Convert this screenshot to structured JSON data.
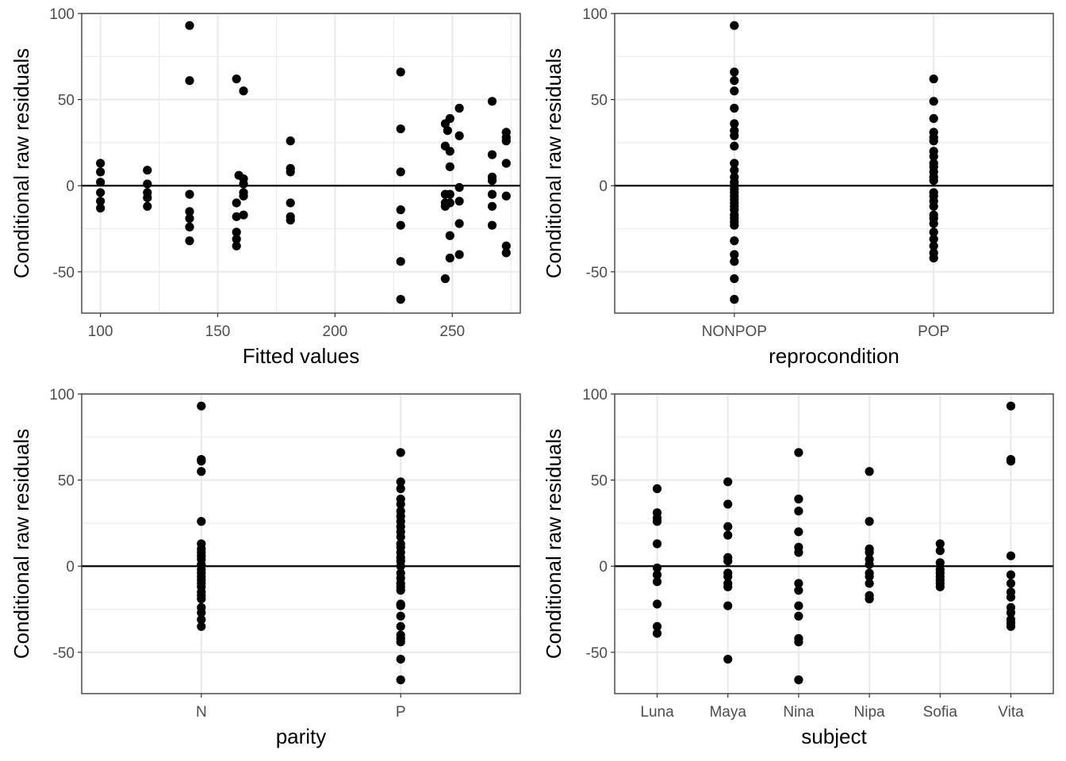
{
  "chart_data": [
    {
      "type": "scatter",
      "xscale": "continuous",
      "xlabel": "Fitted values",
      "ylabel": "Conditional raw residuals",
      "xlim": [
        92,
        279
      ],
      "ylim": [
        -74,
        100
      ],
      "xticks": [
        100,
        150,
        200,
        250
      ],
      "yticks": [
        100,
        50,
        0,
        -50
      ],
      "hline": 0,
      "grid": true,
      "points": [
        [
          100,
          13
        ],
        [
          100,
          8
        ],
        [
          100,
          2
        ],
        [
          100,
          -4
        ],
        [
          100,
          -9
        ],
        [
          100,
          -13
        ],
        [
          120,
          9
        ],
        [
          120,
          1
        ],
        [
          120,
          -4
        ],
        [
          120,
          -7
        ],
        [
          120,
          -12
        ],
        [
          138,
          93
        ],
        [
          138,
          61
        ],
        [
          138,
          -5
        ],
        [
          138,
          -15
        ],
        [
          138,
          -19
        ],
        [
          138,
          -24
        ],
        [
          138,
          -32
        ],
        [
          158,
          62
        ],
        [
          159,
          6
        ],
        [
          158,
          -10
        ],
        [
          158,
          -18
        ],
        [
          158,
          -27
        ],
        [
          158,
          -31
        ],
        [
          158,
          -35
        ],
        [
          161,
          55
        ],
        [
          161,
          4
        ],
        [
          161,
          1
        ],
        [
          161,
          -4
        ],
        [
          161,
          -6
        ],
        [
          161,
          -17
        ],
        [
          181,
          26
        ],
        [
          181,
          10
        ],
        [
          181,
          8
        ],
        [
          181,
          -10
        ],
        [
          181,
          -18
        ],
        [
          181,
          -20
        ],
        [
          228,
          66
        ],
        [
          228,
          33
        ],
        [
          228,
          8
        ],
        [
          228,
          -14
        ],
        [
          228,
          -23
        ],
        [
          228,
          -44
        ],
        [
          228,
          -66
        ],
        [
          247,
          36
        ],
        [
          247,
          23
        ],
        [
          247,
          -5
        ],
        [
          247,
          -10
        ],
        [
          247,
          -12
        ],
        [
          247,
          -54
        ],
        [
          248,
          32
        ],
        [
          249,
          39
        ],
        [
          249,
          20
        ],
        [
          249,
          11
        ],
        [
          249,
          -5
        ],
        [
          249,
          -10
        ],
        [
          249,
          -29
        ],
        [
          249,
          -42
        ],
        [
          253,
          45
        ],
        [
          253,
          29
        ],
        [
          253,
          -1
        ],
        [
          253,
          -9
        ],
        [
          253,
          -22
        ],
        [
          253,
          -40
        ],
        [
          267,
          49
        ],
        [
          267,
          18
        ],
        [
          267,
          5
        ],
        [
          267,
          3
        ],
        [
          267,
          -5
        ],
        [
          267,
          -12
        ],
        [
          267,
          -23
        ],
        [
          273,
          31
        ],
        [
          273,
          28
        ],
        [
          273,
          26
        ],
        [
          273,
          13
        ],
        [
          273,
          -6
        ],
        [
          273,
          -35
        ],
        [
          273,
          -39
        ]
      ]
    },
    {
      "type": "scatter",
      "xscale": "categorical",
      "xlabel": "reprocondition",
      "ylabel": "Conditional raw residuals",
      "ylim": [
        -74,
        100
      ],
      "yticks": [
        100,
        50,
        0,
        -50
      ],
      "hline": 0,
      "grid": true,
      "categories": [
        "NONPOP",
        "POP"
      ],
      "points": [
        [
          "NONPOP",
          93
        ],
        [
          "NONPOP",
          66
        ],
        [
          "NONPOP",
          61
        ],
        [
          "NONPOP",
          55
        ],
        [
          "NONPOP",
          45
        ],
        [
          "NONPOP",
          36
        ],
        [
          "NONPOP",
          32
        ],
        [
          "NONPOP",
          29
        ],
        [
          "NONPOP",
          23
        ],
        [
          "NONPOP",
          13
        ],
        [
          "NONPOP",
          9
        ],
        [
          "NONPOP",
          5
        ],
        [
          "NONPOP",
          2
        ],
        [
          "NONPOP",
          0
        ],
        [
          "NONPOP",
          -2
        ],
        [
          "NONPOP",
          -4
        ],
        [
          "NONPOP",
          -6
        ],
        [
          "NONPOP",
          -8
        ],
        [
          "NONPOP",
          -10
        ],
        [
          "NONPOP",
          -12
        ],
        [
          "NONPOP",
          -14
        ],
        [
          "NONPOP",
          -17
        ],
        [
          "NONPOP",
          -19
        ],
        [
          "NONPOP",
          -21
        ],
        [
          "NONPOP",
          -23
        ],
        [
          "NONPOP",
          -32
        ],
        [
          "NONPOP",
          -40
        ],
        [
          "NONPOP",
          -44
        ],
        [
          "NONPOP",
          -54
        ],
        [
          "NONPOP",
          -66
        ],
        [
          "POP",
          62
        ],
        [
          "POP",
          49
        ],
        [
          "POP",
          39
        ],
        [
          "POP",
          31
        ],
        [
          "POP",
          28
        ],
        [
          "POP",
          26
        ],
        [
          "POP",
          20
        ],
        [
          "POP",
          17
        ],
        [
          "POP",
          13
        ],
        [
          "POP",
          11
        ],
        [
          "POP",
          8
        ],
        [
          "POP",
          5
        ],
        [
          "POP",
          3
        ],
        [
          "POP",
          -4
        ],
        [
          "POP",
          -6
        ],
        [
          "POP",
          -9
        ],
        [
          "POP",
          -12
        ],
        [
          "POP",
          -17
        ],
        [
          "POP",
          -19
        ],
        [
          "POP",
          -22
        ],
        [
          "POP",
          -27
        ],
        [
          "POP",
          -31
        ],
        [
          "POP",
          -35
        ],
        [
          "POP",
          -39
        ],
        [
          "POP",
          -42
        ]
      ]
    },
    {
      "type": "scatter",
      "xscale": "categorical",
      "xlabel": "parity",
      "ylabel": "Conditional raw residuals",
      "ylim": [
        -74,
        100
      ],
      "yticks": [
        100,
        50,
        0,
        -50
      ],
      "hline": 0,
      "grid": true,
      "categories": [
        "N",
        "P"
      ],
      "points": [
        [
          "N",
          93
        ],
        [
          "N",
          62
        ],
        [
          "N",
          61
        ],
        [
          "N",
          55
        ],
        [
          "N",
          26
        ],
        [
          "N",
          13
        ],
        [
          "N",
          10
        ],
        [
          "N",
          8
        ],
        [
          "N",
          6
        ],
        [
          "N",
          4
        ],
        [
          "N",
          1
        ],
        [
          "N",
          -2
        ],
        [
          "N",
          -4
        ],
        [
          "N",
          -6
        ],
        [
          "N",
          -8
        ],
        [
          "N",
          -10
        ],
        [
          "N",
          -12
        ],
        [
          "N",
          -15
        ],
        [
          "N",
          -17
        ],
        [
          "N",
          -19
        ],
        [
          "N",
          -24
        ],
        [
          "N",
          -27
        ],
        [
          "N",
          -31
        ],
        [
          "N",
          -35
        ],
        [
          "P",
          66
        ],
        [
          "P",
          49
        ],
        [
          "P",
          45
        ],
        [
          "P",
          39
        ],
        [
          "P",
          36
        ],
        [
          "P",
          32
        ],
        [
          "P",
          29
        ],
        [
          "P",
          26
        ],
        [
          "P",
          23
        ],
        [
          "P",
          20
        ],
        [
          "P",
          17
        ],
        [
          "P",
          13
        ],
        [
          "P",
          11
        ],
        [
          "P",
          8
        ],
        [
          "P",
          5
        ],
        [
          "P",
          3
        ],
        [
          "P",
          0
        ],
        [
          "P",
          -4
        ],
        [
          "P",
          -7
        ],
        [
          "P",
          -10
        ],
        [
          "P",
          -12
        ],
        [
          "P",
          -14
        ],
        [
          "P",
          -22
        ],
        [
          "P",
          -23
        ],
        [
          "P",
          -29
        ],
        [
          "P",
          -35
        ],
        [
          "P",
          -40
        ],
        [
          "P",
          -42
        ],
        [
          "P",
          -44
        ],
        [
          "P",
          -54
        ],
        [
          "P",
          -66
        ]
      ]
    },
    {
      "type": "scatter",
      "xscale": "categorical",
      "xlabel": "subject",
      "ylabel": "Conditional raw residuals",
      "ylim": [
        -74,
        100
      ],
      "yticks": [
        100,
        50,
        0,
        -50
      ],
      "hline": 0,
      "grid": true,
      "categories": [
        "Luna",
        "Maya",
        "Nina",
        "Nipa",
        "Sofia",
        "Vita"
      ],
      "points": [
        [
          "Luna",
          45
        ],
        [
          "Luna",
          31
        ],
        [
          "Luna",
          28
        ],
        [
          "Luna",
          26
        ],
        [
          "Luna",
          13
        ],
        [
          "Luna",
          -1
        ],
        [
          "Luna",
          -5
        ],
        [
          "Luna",
          -9
        ],
        [
          "Luna",
          -22
        ],
        [
          "Luna",
          -35
        ],
        [
          "Luna",
          -39
        ],
        [
          "Maya",
          49
        ],
        [
          "Maya",
          36
        ],
        [
          "Maya",
          23
        ],
        [
          "Maya",
          18
        ],
        [
          "Maya",
          5
        ],
        [
          "Maya",
          3
        ],
        [
          "Maya",
          -4
        ],
        [
          "Maya",
          -6
        ],
        [
          "Maya",
          -10
        ],
        [
          "Maya",
          -12
        ],
        [
          "Maya",
          -23
        ],
        [
          "Maya",
          -54
        ],
        [
          "Nina",
          66
        ],
        [
          "Nina",
          39
        ],
        [
          "Nina",
          32
        ],
        [
          "Nina",
          20
        ],
        [
          "Nina",
          11
        ],
        [
          "Nina",
          8
        ],
        [
          "Nina",
          -10
        ],
        [
          "Nina",
          -14
        ],
        [
          "Nina",
          -23
        ],
        [
          "Nina",
          -29
        ],
        [
          "Nina",
          -42
        ],
        [
          "Nina",
          -44
        ],
        [
          "Nina",
          -66
        ],
        [
          "Nipa",
          55
        ],
        [
          "Nipa",
          26
        ],
        [
          "Nipa",
          10
        ],
        [
          "Nipa",
          8
        ],
        [
          "Nipa",
          4
        ],
        [
          "Nipa",
          1
        ],
        [
          "Nipa",
          -4
        ],
        [
          "Nipa",
          -6
        ],
        [
          "Nipa",
          -10
        ],
        [
          "Nipa",
          -17
        ],
        [
          "Nipa",
          -19
        ],
        [
          "Sofia",
          13
        ],
        [
          "Sofia",
          9
        ],
        [
          "Sofia",
          2
        ],
        [
          "Sofia",
          -2
        ],
        [
          "Sofia",
          -4
        ],
        [
          "Sofia",
          -6
        ],
        [
          "Sofia",
          -8
        ],
        [
          "Sofia",
          -10
        ],
        [
          "Sofia",
          -12
        ],
        [
          "Vita",
          93
        ],
        [
          "Vita",
          62
        ],
        [
          "Vita",
          61
        ],
        [
          "Vita",
          6
        ],
        [
          "Vita",
          -5
        ],
        [
          "Vita",
          -10
        ],
        [
          "Vita",
          -15
        ],
        [
          "Vita",
          -18
        ],
        [
          "Vita",
          -24
        ],
        [
          "Vita",
          -27
        ],
        [
          "Vita",
          -31
        ],
        [
          "Vita",
          -33
        ],
        [
          "Vita",
          -35
        ]
      ]
    }
  ]
}
